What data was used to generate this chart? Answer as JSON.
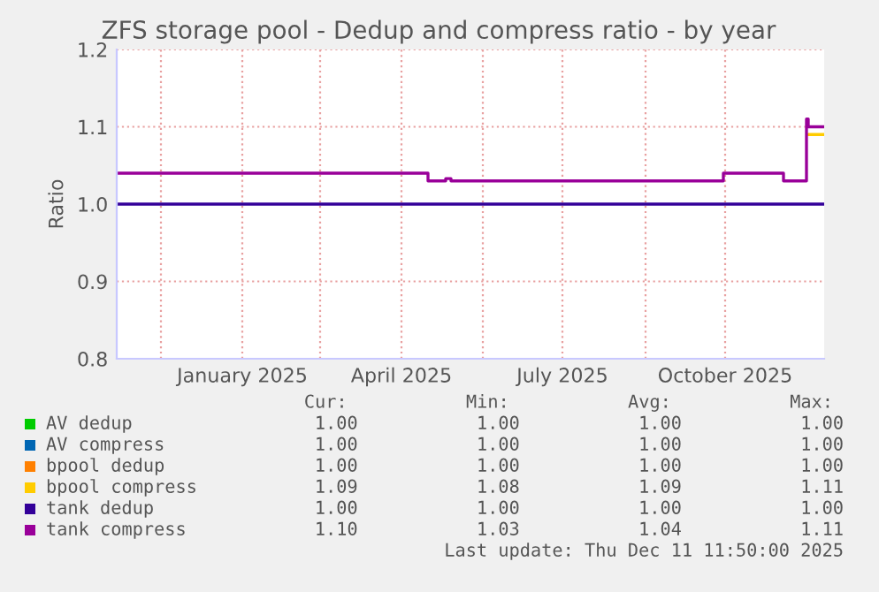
{
  "chart_data": {
    "type": "step",
    "title": "ZFS storage pool - Dedup and compress ratio - by year",
    "ylabel": "Ratio",
    "xlim": [
      "2024-11-06",
      "2025-12-11"
    ],
    "xticks": [
      {
        "value": "2024-12-01",
        "label": null
      },
      {
        "value": "2025-01-16",
        "label": "January 2025"
      },
      {
        "value": "2025-03-01",
        "label": null
      },
      {
        "value": "2025-04-16",
        "label": "April 2025"
      },
      {
        "value": "2025-06-01",
        "label": null
      },
      {
        "value": "2025-07-16",
        "label": "July 2025"
      },
      {
        "value": "2025-09-01",
        "label": null
      },
      {
        "value": "2025-10-16",
        "label": "October 2025"
      }
    ],
    "ylim": [
      0.8,
      1.2
    ],
    "yticks": [
      0.8,
      0.9,
      {
        "value": 1.0,
        "label": "1.0"
      },
      1.1,
      1.2
    ],
    "grid": true,
    "legend": "bottom",
    "x": [
      "2024-11-06",
      "2025-12-11"
    ],
    "series": [
      {
        "name": "AV dedup",
        "color": "#00cc00",
        "values": [
          null,
          null
        ]
      },
      {
        "name": "AV compress",
        "color": "#0066b3",
        "values": [
          null,
          null
        ]
      },
      {
        "name": "bpool dedup",
        "color": "#ff8000",
        "values": [
          null,
          null
        ]
      },
      {
        "name": "bpool compress",
        "color": "#ffcc00",
        "x": [
          "2025-12-02",
          "2025-12-11"
        ],
        "values": [
          1.09,
          1.09
        ]
      },
      {
        "name": "tank dedup",
        "color": "#330099",
        "values": [
          1.0,
          1.0
        ]
      },
      {
        "name": "tank compress",
        "color": "#990099",
        "x": [
          "2024-11-06",
          "2025-05-01",
          "2025-05-11",
          "2025-05-14",
          "2025-10-15",
          "2025-11-18",
          "2025-12-01",
          "2025-12-02",
          "2025-12-11"
        ],
        "values": [
          1.04,
          1.03,
          1.033,
          1.03,
          1.04,
          1.03,
          1.11,
          1.1,
          1.1
        ]
      }
    ],
    "annotations": [
      "Cur:           Min:           Avg:           Max:",
      "1.00           1.00           1.00           1.00",
      "1.00           1.00           1.00           1.00",
      "1.00           1.00           1.00           1.00",
      "1.09           1.08           1.09           1.11",
      "1.00           1.00           1.00           1.00",
      "1.10           1.03           1.04           1.11",
      "Last update: Thu Dec 11 11:50:00 2025"
    ]
  }
}
